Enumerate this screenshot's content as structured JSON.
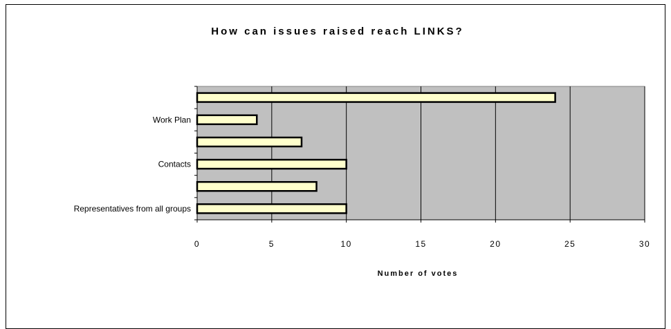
{
  "chart_data": {
    "type": "bar",
    "orientation": "horizontal",
    "title": "How can issues raised reach LINKS?",
    "xlabel": "Number of votes",
    "ylabel": "",
    "xlim": [
      0,
      30
    ],
    "x_ticks": [
      0,
      5,
      10,
      15,
      20,
      25,
      30
    ],
    "categories": [
      "",
      "Work Plan",
      "",
      "Contacts",
      "",
      "Representatives from all groups"
    ],
    "values": [
      24,
      4,
      7,
      10,
      8,
      10
    ],
    "grid": "vertical",
    "legend": "none",
    "colors": {
      "bar_fill": "#FFFFCC",
      "bar_stroke": "#000000",
      "plot_bg": "#C0C0C0",
      "grid": "#000000"
    }
  }
}
